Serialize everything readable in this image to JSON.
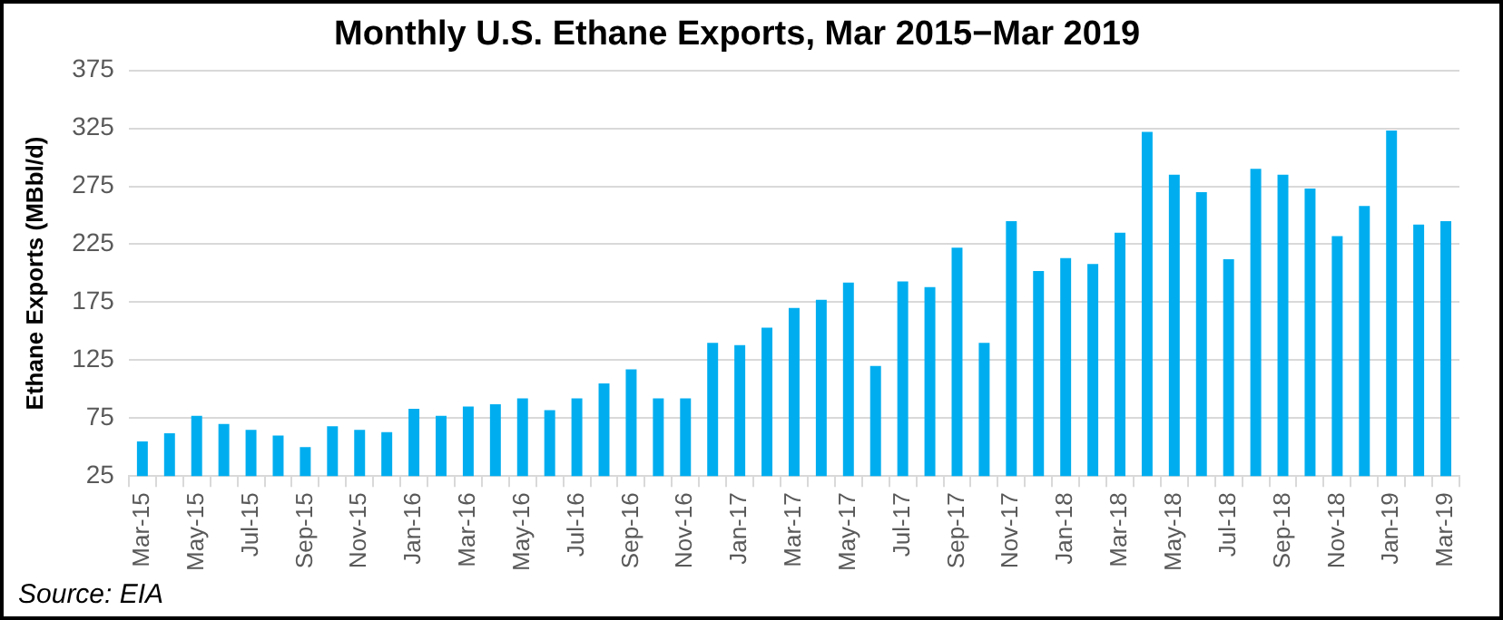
{
  "chart_data": {
    "type": "bar",
    "title": "Monthly U.S. Ethane Exports, Mar 2015−Mar 2019",
    "ylabel": "Ethane Exports (MBbl/d)",
    "annotations": [
      "Source: EIA"
    ],
    "categories": [
      "Mar-15",
      null,
      "May-15",
      null,
      "Jul-15",
      null,
      "Sep-15",
      null,
      "Nov-15",
      null,
      "Jan-16",
      null,
      "Mar-16",
      null,
      "May-16",
      null,
      "Jul-16",
      null,
      "Sep-16",
      null,
      "Nov-16",
      null,
      "Jan-17",
      null,
      "Mar-17",
      null,
      "May-17",
      null,
      "Jul-17",
      null,
      "Sep-17",
      null,
      "Nov-17",
      null,
      "Jan-18",
      null,
      "Mar-18",
      null,
      "May-18",
      null,
      "Jul-18",
      null,
      "Sep-18",
      null,
      "Nov-18",
      null,
      "Jan-19",
      null,
      "Mar-19"
    ],
    "values": [
      55,
      62,
      77,
      70,
      65,
      60,
      50,
      68,
      65,
      63,
      83,
      77,
      85,
      87,
      92,
      82,
      92,
      105,
      117,
      92,
      92,
      140,
      138,
      153,
      170,
      177,
      192,
      120,
      193,
      188,
      222,
      140,
      245,
      202,
      213,
      208,
      235,
      322,
      285,
      270,
      212,
      290,
      285,
      273,
      232,
      258,
      323,
      242,
      245
    ],
    "color": "#00aeef",
    "ylim": [
      25,
      375
    ],
    "yticks": [
      25,
      75,
      125,
      175,
      225,
      275,
      325,
      375
    ],
    "grid": "y"
  }
}
